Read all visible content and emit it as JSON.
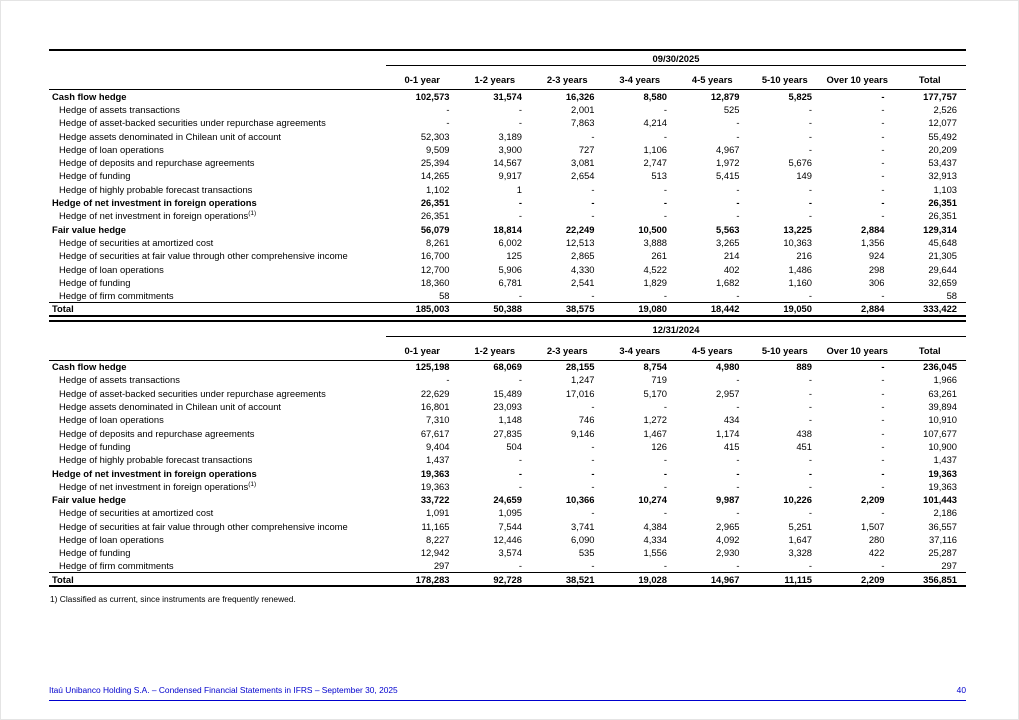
{
  "document": {
    "footnote": "1) Classified as current, since instruments are frequently renewed.",
    "footer": {
      "left": "Itaú Unibanco Holding S.A. – Condensed Financial Statements in IFRS – September 30, 2025",
      "page": "40"
    },
    "accent_color": "#0000cd"
  },
  "columns": [
    "0-1 year",
    "1-2 years",
    "2-3 years",
    "3-4 years",
    "4-5 years",
    "5-10 years",
    "Over 10 years",
    "Total"
  ],
  "tables": [
    {
      "date": "09/30/2025",
      "rows": [
        {
          "label": "Cash flow hedge",
          "bold": true,
          "values": [
            "102,573",
            "31,574",
            "16,326",
            "8,580",
            "12,879",
            "5,825",
            "-",
            "177,757"
          ]
        },
        {
          "label": "Hedge of assets transactions",
          "indent": true,
          "values": [
            "-",
            "-",
            "2,001",
            "-",
            "525",
            "-",
            "-",
            "2,526"
          ]
        },
        {
          "label": "Hedge of asset-backed securities under repurchase agreements",
          "indent": true,
          "values": [
            "-",
            "-",
            "7,863",
            "4,214",
            "-",
            "-",
            "-",
            "12,077"
          ]
        },
        {
          "label": "Hedge assets denominated in Chilean unit of account",
          "indent": true,
          "values": [
            "52,303",
            "3,189",
            "-",
            "-",
            "-",
            "-",
            "-",
            "55,492"
          ]
        },
        {
          "label": "Hedge of loan operations",
          "indent": true,
          "values": [
            "9,509",
            "3,900",
            "727",
            "1,106",
            "4,967",
            "-",
            "-",
            "20,209"
          ]
        },
        {
          "label": "Hedge of deposits and repurchase agreements",
          "indent": true,
          "values": [
            "25,394",
            "14,567",
            "3,081",
            "2,747",
            "1,972",
            "5,676",
            "-",
            "53,437"
          ]
        },
        {
          "label": "Hedge of funding",
          "indent": true,
          "values": [
            "14,265",
            "9,917",
            "2,654",
            "513",
            "5,415",
            "149",
            "-",
            "32,913"
          ]
        },
        {
          "label": "Hedge of highly probable forecast transactions",
          "indent": true,
          "values": [
            "1,102",
            "1",
            "-",
            "-",
            "-",
            "-",
            "-",
            "1,103"
          ]
        },
        {
          "label": "Hedge of net investment in foreign operations",
          "bold": true,
          "values": [
            "26,351",
            "-",
            "-",
            "-",
            "-",
            "-",
            "-",
            "26,351"
          ]
        },
        {
          "label": "Hedge of net investment in foreign operations",
          "sup": "(1)",
          "indent": true,
          "values": [
            "26,351",
            "-",
            "-",
            "-",
            "-",
            "-",
            "-",
            "26,351"
          ]
        },
        {
          "label": "Fair value hedge",
          "bold": true,
          "values": [
            "56,079",
            "18,814",
            "22,249",
            "10,500",
            "5,563",
            "13,225",
            "2,884",
            "129,314"
          ]
        },
        {
          "label": "Hedge of securities at amortized cost",
          "indent": true,
          "values": [
            "8,261",
            "6,002",
            "12,513",
            "3,888",
            "3,265",
            "10,363",
            "1,356",
            "45,648"
          ]
        },
        {
          "label": "Hedge of securities at fair value through other comprehensive income",
          "indent": true,
          "values": [
            "16,700",
            "125",
            "2,865",
            "261",
            "214",
            "216",
            "924",
            "21,305"
          ]
        },
        {
          "label": "Hedge of loan operations",
          "indent": true,
          "values": [
            "12,700",
            "5,906",
            "4,330",
            "4,522",
            "402",
            "1,486",
            "298",
            "29,644"
          ]
        },
        {
          "label": "Hedge of funding",
          "indent": true,
          "values": [
            "18,360",
            "6,781",
            "2,541",
            "1,829",
            "1,682",
            "1,160",
            "306",
            "32,659"
          ]
        },
        {
          "label": "Hedge of firm commitments",
          "indent": true,
          "values": [
            "58",
            "-",
            "-",
            "-",
            "-",
            "-",
            "-",
            "58"
          ]
        },
        {
          "label": "Total",
          "bold": true,
          "total": true,
          "values": [
            "185,003",
            "50,388",
            "38,575",
            "19,080",
            "18,442",
            "19,050",
            "2,884",
            "333,422"
          ]
        }
      ]
    },
    {
      "date": "12/31/2024",
      "rows": [
        {
          "label": "Cash flow hedge",
          "bold": true,
          "values": [
            "125,198",
            "68,069",
            "28,155",
            "8,754",
            "4,980",
            "889",
            "-",
            "236,045"
          ]
        },
        {
          "label": "Hedge of assets transactions",
          "indent": true,
          "values": [
            "-",
            "-",
            "1,247",
            "719",
            "-",
            "-",
            "-",
            "1,966"
          ]
        },
        {
          "label": "Hedge of asset-backed securities under repurchase agreements",
          "indent": true,
          "values": [
            "22,629",
            "15,489",
            "17,016",
            "5,170",
            "2,957",
            "-",
            "-",
            "63,261"
          ]
        },
        {
          "label": "Hedge assets denominated in Chilean unit of account",
          "indent": true,
          "values": [
            "16,801",
            "23,093",
            "-",
            "-",
            "-",
            "-",
            "-",
            "39,894"
          ]
        },
        {
          "label": "Hedge of loan operations",
          "indent": true,
          "values": [
            "7,310",
            "1,148",
            "746",
            "1,272",
            "434",
            "-",
            "-",
            "10,910"
          ]
        },
        {
          "label": "Hedge of deposits and repurchase agreements",
          "indent": true,
          "values": [
            "67,617",
            "27,835",
            "9,146",
            "1,467",
            "1,174",
            "438",
            "-",
            "107,677"
          ]
        },
        {
          "label": "Hedge of funding",
          "indent": true,
          "values": [
            "9,404",
            "504",
            "-",
            "126",
            "415",
            "451",
            "-",
            "10,900"
          ]
        },
        {
          "label": "Hedge of highly probable forecast transactions",
          "indent": true,
          "values": [
            "1,437",
            "-",
            "-",
            "-",
            "-",
            "-",
            "-",
            "1,437"
          ]
        },
        {
          "label": "Hedge of net investment in foreign operations",
          "bold": true,
          "values": [
            "19,363",
            "-",
            "-",
            "-",
            "-",
            "-",
            "-",
            "19,363"
          ]
        },
        {
          "label": "Hedge of net investment in foreign operations",
          "sup": "(1)",
          "indent": true,
          "values": [
            "19,363",
            "-",
            "-",
            "-",
            "-",
            "-",
            "-",
            "19,363"
          ]
        },
        {
          "label": "Fair value hedge",
          "bold": true,
          "values": [
            "33,722",
            "24,659",
            "10,366",
            "10,274",
            "9,987",
            "10,226",
            "2,209",
            "101,443"
          ]
        },
        {
          "label": "Hedge of securities at amortized cost",
          "indent": true,
          "values": [
            "1,091",
            "1,095",
            "-",
            "-",
            "-",
            "-",
            "-",
            "2,186"
          ]
        },
        {
          "label": "Hedge of securities at fair value through other comprehensive income",
          "indent": true,
          "values": [
            "11,165",
            "7,544",
            "3,741",
            "4,384",
            "2,965",
            "5,251",
            "1,507",
            "36,557"
          ]
        },
        {
          "label": "Hedge of loan operations",
          "indent": true,
          "values": [
            "8,227",
            "12,446",
            "6,090",
            "4,334",
            "4,092",
            "1,647",
            "280",
            "37,116"
          ]
        },
        {
          "label": "Hedge of funding",
          "indent": true,
          "values": [
            "12,942",
            "3,574",
            "535",
            "1,556",
            "2,930",
            "3,328",
            "422",
            "25,287"
          ]
        },
        {
          "label": "Hedge of firm commitments",
          "indent": true,
          "values": [
            "297",
            "-",
            "-",
            "-",
            "-",
            "-",
            "-",
            "297"
          ]
        },
        {
          "label": "Total",
          "bold": true,
          "total": true,
          "values": [
            "178,283",
            "92,728",
            "38,521",
            "19,028",
            "14,967",
            "11,115",
            "2,209",
            "356,851"
          ]
        }
      ]
    }
  ]
}
